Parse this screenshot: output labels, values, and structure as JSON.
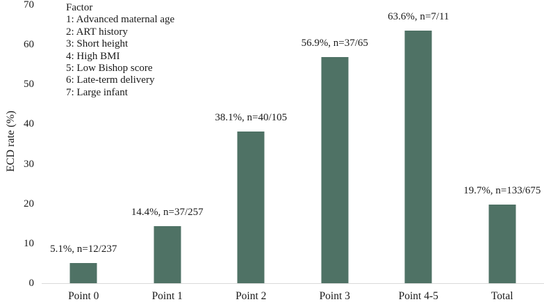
{
  "chart_data": {
    "type": "bar",
    "categories": [
      "Point 0",
      "Point 1",
      "Point 2",
      "Point 3",
      "Point 4-5",
      "Total"
    ],
    "values": [
      5.1,
      14.4,
      38.1,
      56.9,
      63.6,
      19.7
    ],
    "bar_labels": [
      "5.1%, n=12/237",
      "14.4%, n=37/257",
      "38.1%, n=40/105",
      "56.9%, n=37/65",
      "63.6%, n=7/11",
      "19.7%, n=133/675"
    ],
    "title": "",
    "xlabel": "",
    "ylabel": "ECD rate (%)",
    "ylim": [
      0,
      70
    ],
    "yticks": [
      0,
      10,
      20,
      30,
      40,
      50,
      60,
      70
    ],
    "grid": false,
    "legend_position": "top-left",
    "legend_lines": [
      "Factor",
      "1: Advanced maternal age",
      "2: ART history",
      "3: Short height",
      "4: High BMI",
      "5: Low Bishop score",
      "6: Late-term delivery",
      "7: Large infant"
    ],
    "colors": {
      "bar": "#4f7265",
      "axis_line": "#d9d9d9",
      "text": "#1a1a1a",
      "background": "#ffffff"
    }
  }
}
